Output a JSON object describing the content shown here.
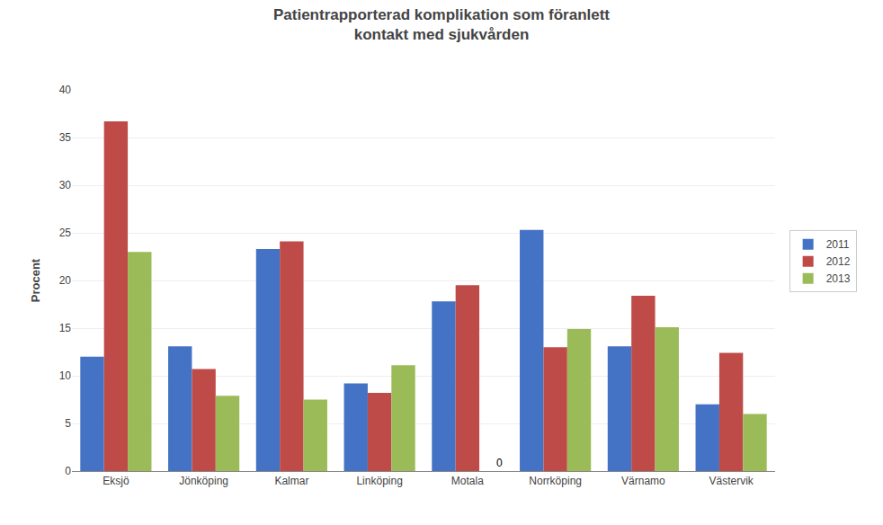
{
  "chart_data": {
    "type": "bar",
    "title": "Patientrapporterad komplikation som föranlett\nkontakt med sjukvården",
    "categories": [
      "Eksjö",
      "Jönköping",
      "Kalmar",
      "Linköping",
      "Motala",
      "Norrköping",
      "Värnamo",
      "Västervik"
    ],
    "series": [
      {
        "name": "2011",
        "color": "#4472C4",
        "values": [
          12.0,
          13.1,
          23.3,
          9.2,
          17.8,
          25.3,
          13.1,
          7.0
        ]
      },
      {
        "name": "2012",
        "color": "#BE4B48",
        "values": [
          36.7,
          10.7,
          24.1,
          8.2,
          19.5,
          13.0,
          18.4,
          12.4
        ]
      },
      {
        "name": "2013",
        "color": "#9BBB59",
        "values": [
          23.0,
          7.9,
          7.5,
          11.1,
          0.0,
          14.9,
          15.1,
          6.0
        ]
      }
    ],
    "ylabel": "Procent",
    "ylim": [
      0,
      40
    ],
    "yticks": [
      0,
      5,
      10,
      15,
      20,
      25,
      30,
      35,
      40
    ],
    "grid": true,
    "legend": "right",
    "annotations": [
      {
        "text": "0",
        "category": "Motala",
        "series": "2013"
      }
    ],
    "background_color": "#FFFFFF"
  }
}
